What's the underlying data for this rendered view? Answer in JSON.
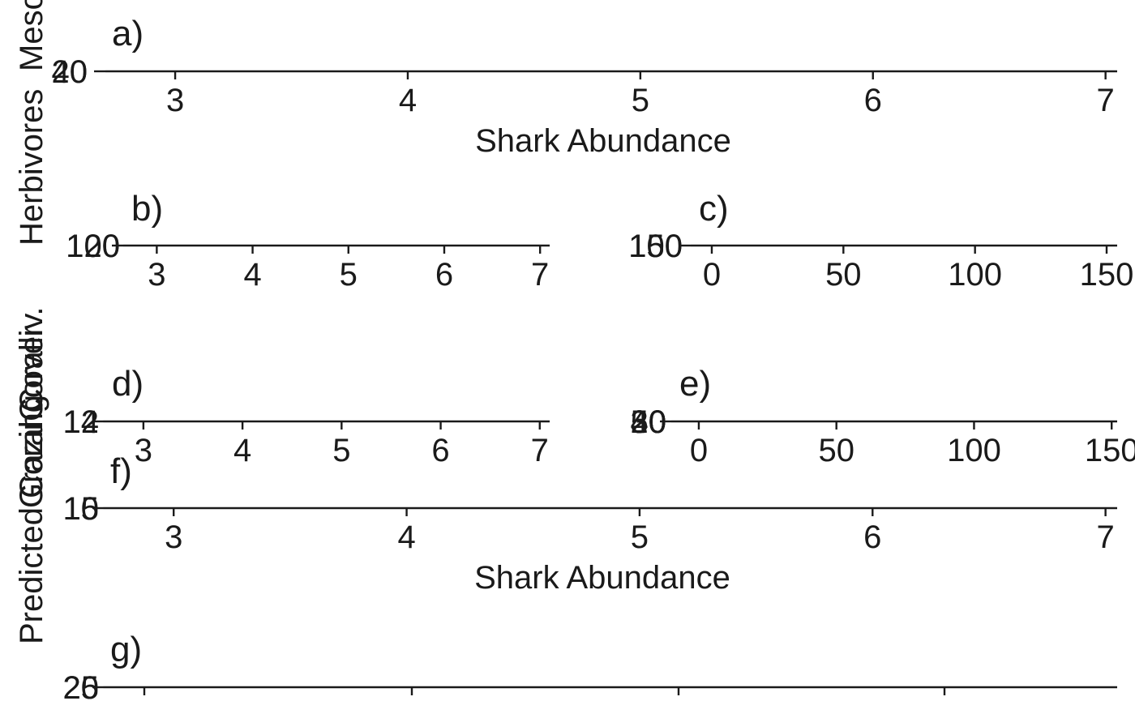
{
  "chart_data": [
    {
      "panel": "a)",
      "type": "line",
      "xlabel": "Shark Abundance",
      "ylabel": "Mesopredators",
      "xlim": [
        2.7,
        7.05
      ],
      "x_ticks": [
        "3",
        "4",
        "5",
        "6",
        "7"
      ],
      "y_ticks": [
        "20",
        "40"
      ]
    },
    {
      "panel": "b)",
      "type": "line",
      "xlabel": "",
      "ylabel": "Herbivores",
      "xlim": [
        2.65,
        7.1
      ],
      "x_ticks": [
        "3",
        "4",
        "5",
        "6",
        "7"
      ],
      "y_ticks": [
        "100",
        "120"
      ]
    },
    {
      "panel": "c)",
      "type": "line",
      "xlabel": "",
      "ylabel": "",
      "xlim": [
        -8,
        154
      ],
      "x_ticks": [
        "0",
        "50",
        "100",
        "150"
      ],
      "y_ticks": [
        "100",
        "150"
      ]
    },
    {
      "panel": "d)",
      "type": "line",
      "xlabel": "",
      "ylabel": "Coralliv.",
      "xlim": [
        2.6,
        7.1
      ],
      "x_ticks": [
        "3",
        "4",
        "5",
        "6",
        "7"
      ],
      "y_ticks": [
        "12",
        "14"
      ]
    },
    {
      "panel": "e)",
      "type": "line",
      "xlabel": "",
      "ylabel": "",
      "xlim": [
        -10,
        152
      ],
      "x_ticks": [
        "0",
        "50",
        "100",
        "150"
      ],
      "y_ticks": [
        "20",
        "30",
        "40",
        "50"
      ]
    },
    {
      "panel": "f)",
      "type": "line",
      "xlabel": "Shark Abundance",
      "ylabel": "Grazing",
      "xlim": [
        2.7,
        7.05
      ],
      "x_ticks": [
        "3",
        "4",
        "5",
        "6",
        "7"
      ],
      "y_ticks": [
        "10",
        "15"
      ]
    },
    {
      "panel": "g)",
      "type": "line",
      "xlabel": "",
      "ylabel": "Predicted Coral Cover",
      "xlim": [
        2.5,
        7.0
      ],
      "x_ticks": [],
      "y_ticks": [
        "20",
        "25"
      ]
    }
  ]
}
